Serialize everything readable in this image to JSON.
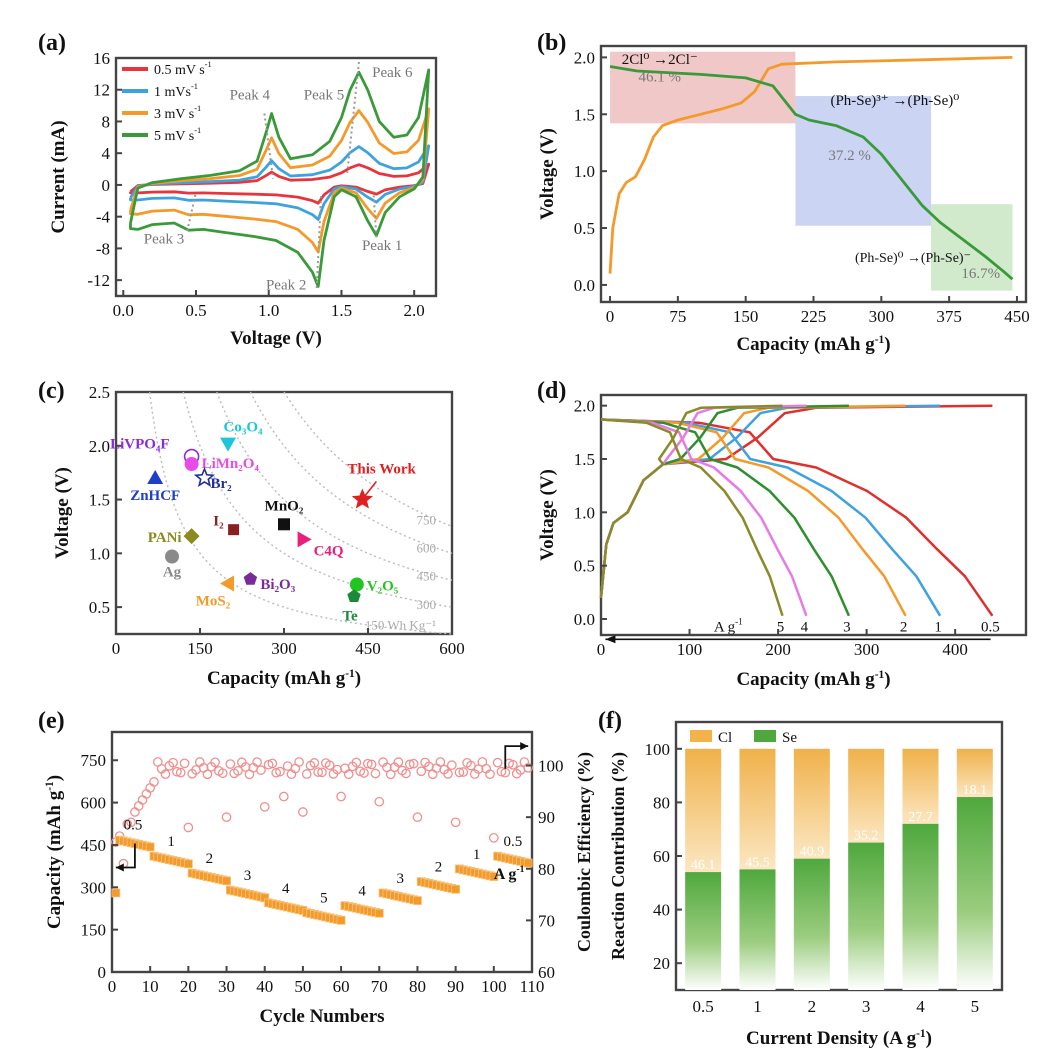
{
  "chart_data": [
    {
      "panel": "(a)",
      "type": "line",
      "xlabel": "Voltage (V)",
      "ylabel": "Current (mA)",
      "xlim": [
        -0.05,
        2.15
      ],
      "ylim": [
        -14,
        16
      ],
      "xticks": [
        0.0,
        0.5,
        1.0,
        1.5,
        2.0
      ],
      "xtick_labels": [
        "0.0",
        "0.5",
        "1.0",
        "1.5",
        "2.0"
      ],
      "yticks": [
        -12,
        -8,
        -4,
        0,
        4,
        8,
        12,
        16
      ],
      "ytick_labels": [
        "-12",
        "-8",
        "-4",
        "0",
        "4",
        "8",
        "12",
        "16"
      ],
      "legend": {
        "placement": "top-left",
        "entries": [
          {
            "label": "0.5 mV s",
            "sup": "-1",
            "color": "#e8343c"
          },
          {
            "label": "1 mVs",
            "sup": "-1",
            "color": "#3ea2df"
          },
          {
            "label": "3 mV s",
            "sup": "-1",
            "color": "#f39a2b"
          },
          {
            "label": "5 mV s",
            "sup": "-1",
            "color": "#3a9a3a"
          }
        ]
      },
      "series": [
        {
          "name": "0.5 mV s-1",
          "color": "#e8343c",
          "scale": 0.18
        },
        {
          "name": "1 mVs-1",
          "color": "#3ea2df",
          "scale": 0.34
        },
        {
          "name": "3 mV s-1",
          "color": "#f39a2b",
          "scale": 0.66
        },
        {
          "name": "5 mV s-1",
          "color": "#3a9a3a",
          "scale": 1.0
        }
      ],
      "base_anodic": [
        [
          0.05,
          -4.8
        ],
        [
          0.1,
          -0.4
        ],
        [
          0.2,
          0.3
        ],
        [
          0.4,
          0.8
        ],
        [
          0.6,
          1.2
        ],
        [
          0.8,
          1.8
        ],
        [
          0.92,
          3.0
        ],
        [
          0.98,
          6.5
        ],
        [
          1.02,
          9.0
        ],
        [
          1.07,
          6.0
        ],
        [
          1.15,
          3.3
        ],
        [
          1.3,
          3.8
        ],
        [
          1.42,
          5.5
        ],
        [
          1.5,
          8.5
        ],
        [
          1.56,
          12.0
        ],
        [
          1.62,
          14.2
        ],
        [
          1.68,
          12.0
        ],
        [
          1.76,
          8.0
        ],
        [
          1.86,
          6.0
        ],
        [
          1.95,
          6.3
        ],
        [
          2.03,
          8.5
        ],
        [
          2.1,
          14.5
        ]
      ],
      "base_cathodic": [
        [
          2.1,
          14.5
        ],
        [
          2.06,
          1.0
        ],
        [
          2.0,
          -0.5
        ],
        [
          1.9,
          -1.5
        ],
        [
          1.8,
          -3.5
        ],
        [
          1.74,
          -6.4
        ],
        [
          1.68,
          -4.5
        ],
        [
          1.6,
          -1.5
        ],
        [
          1.5,
          -0.6
        ],
        [
          1.45,
          -1.5
        ],
        [
          1.38,
          -7.0
        ],
        [
          1.34,
          -12.8
        ],
        [
          1.3,
          -11.0
        ],
        [
          1.2,
          -8.5
        ],
        [
          1.05,
          -7.0
        ],
        [
          0.9,
          -6.5
        ],
        [
          0.7,
          -6.0
        ],
        [
          0.55,
          -5.6
        ],
        [
          0.45,
          -5.7
        ],
        [
          0.35,
          -4.8
        ],
        [
          0.2,
          -5.0
        ],
        [
          0.1,
          -5.6
        ],
        [
          0.05,
          -5.5
        ],
        [
          0.05,
          -4.8
        ]
      ],
      "peak_markers": [
        {
          "label": "Peak 1",
          "v": 1.74,
          "i": -6.4
        },
        {
          "label": "Peak 2",
          "v": 1.34,
          "i": -12.8
        },
        {
          "label": "Peak 3",
          "v": 0.45,
          "i": -5.7
        },
        {
          "label": "Peak 4",
          "v": 1.02,
          "i": 9.0
        },
        {
          "label": "Peak 5",
          "v": 1.52,
          "i": 8.5
        },
        {
          "label": "Peak 6",
          "v": 1.62,
          "i": 14.2
        }
      ]
    },
    {
      "panel": "(b)",
      "type": "line",
      "xlabel": "Capacity (mAh g",
      "xlabel_sup": "-1",
      "ylabel": "Voltage (V)",
      "xlim": [
        -10,
        460
      ],
      "ylim": [
        -0.15,
        2.1
      ],
      "xticks": [
        0,
        75,
        150,
        225,
        300,
        375,
        450
      ],
      "xtick_labels": [
        "0",
        "75",
        "150",
        "225",
        "300",
        "375",
        "450"
      ],
      "yticks": [
        0.0,
        0.5,
        1.0,
        1.5,
        2.0
      ],
      "ytick_labels": [
        "0.0",
        "0.5",
        "1.0",
        "1.5",
        "2.0"
      ],
      "charge": {
        "color": "#f39a2b",
        "points": [
          [
            0,
            0.1
          ],
          [
            3,
            0.5
          ],
          [
            10,
            0.8
          ],
          [
            18,
            0.9
          ],
          [
            28,
            0.95
          ],
          [
            38,
            1.1
          ],
          [
            48,
            1.3
          ],
          [
            58,
            1.4
          ],
          [
            75,
            1.45
          ],
          [
            100,
            1.5
          ],
          [
            125,
            1.55
          ],
          [
            145,
            1.6
          ],
          [
            160,
            1.7
          ],
          [
            175,
            1.9
          ],
          [
            190,
            1.94
          ],
          [
            250,
            1.96
          ],
          [
            350,
            1.98
          ],
          [
            445,
            2.0
          ]
        ]
      },
      "discharge": {
        "color": "#3a9a3a",
        "points": [
          [
            0,
            1.92
          ],
          [
            30,
            1.88
          ],
          [
            100,
            1.85
          ],
          [
            150,
            1.82
          ],
          [
            180,
            1.75
          ],
          [
            195,
            1.6
          ],
          [
            205,
            1.5
          ],
          [
            220,
            1.45
          ],
          [
            250,
            1.4
          ],
          [
            280,
            1.3
          ],
          [
            300,
            1.15
          ],
          [
            320,
            0.95
          ],
          [
            345,
            0.7
          ],
          [
            365,
            0.55
          ],
          [
            390,
            0.4
          ],
          [
            415,
            0.25
          ],
          [
            435,
            0.12
          ],
          [
            445,
            0.05
          ]
        ]
      },
      "regions": [
        {
          "x0": 0,
          "x1": 205,
          "y0": 1.42,
          "y1": 2.05,
          "color": "#e08585",
          "percent": "46.1 %",
          "reaction": "2Cl⁰ →2Cl⁻"
        },
        {
          "x0": 205,
          "x1": 355,
          "y0": 0.52,
          "y1": 1.66,
          "color": "#8ea0e6",
          "percent": "37.2 %",
          "reaction": "(Ph-Se)³⁺ →(Ph-Se)⁰"
        },
        {
          "x0": 355,
          "x1": 445,
          "y0": -0.05,
          "y1": 0.71,
          "color": "#9bd08f",
          "percent": "16.7%",
          "reaction": "(Ph-Se)⁰ →(Ph-Se)⁻"
        }
      ]
    },
    {
      "panel": "(c)",
      "type": "scatter",
      "xlabel": "Capacity (mAh g",
      "xlabel_sup": "-1",
      "ylabel": "Voltage (V)",
      "xlim": [
        0,
        600
      ],
      "ylim": [
        0.25,
        2.5
      ],
      "xticks": [
        0,
        150,
        300,
        450,
        600
      ],
      "xtick_labels": [
        "0",
        "150",
        "300",
        "450",
        "600"
      ],
      "yticks": [
        0.5,
        1.0,
        1.5,
        2.0,
        2.5
      ],
      "ytick_labels": [
        "0.5",
        "1.0",
        "1.5",
        "2.0",
        "2.5"
      ],
      "energy_lines": [
        150,
        300,
        450,
        600,
        750
      ],
      "energy_labels": [
        "150 Wh Kg⁻¹",
        "300",
        "450",
        "600",
        "750"
      ],
      "points": [
        {
          "name": "LiVPO₄F",
          "x": 135,
          "y": 1.9,
          "color": "#8a2be2",
          "marker": "half-circle"
        },
        {
          "name": "Co₃O₄",
          "x": 200,
          "y": 2.02,
          "color": "#19c7d6",
          "marker": "tri-down"
        },
        {
          "name": "LiMn₂O₄",
          "x": 135,
          "y": 1.83,
          "color": "#e84be8",
          "marker": "circle"
        },
        {
          "name": "This Work",
          "x": 440,
          "y": 1.5,
          "color": "#e02020",
          "marker": "star"
        },
        {
          "name": "ZnHCF",
          "x": 70,
          "y": 1.7,
          "color": "#1f3fc8",
          "marker": "tri-up"
        },
        {
          "name": "Br₂",
          "x": 158,
          "y": 1.7,
          "color": "#1f2f9e",
          "marker": "star-open"
        },
        {
          "name": "MnO₂",
          "x": 300,
          "y": 1.27,
          "color": "#111111",
          "marker": "square"
        },
        {
          "name": "I₂",
          "x": 210,
          "y": 1.22,
          "color": "#8a1f1f",
          "marker": "square-half"
        },
        {
          "name": "PANi",
          "x": 135,
          "y": 1.16,
          "color": "#8a8a1f",
          "marker": "diamond"
        },
        {
          "name": "C4Q",
          "x": 335,
          "y": 1.13,
          "color": "#e8207a",
          "marker": "tri-right"
        },
        {
          "name": "Ag",
          "x": 100,
          "y": 0.97,
          "color": "#8a8a8a",
          "marker": "circle"
        },
        {
          "name": "Bi₂O₃",
          "x": 240,
          "y": 0.76,
          "color": "#7a2a9a",
          "marker": "pentagon"
        },
        {
          "name": "V₂O₅",
          "x": 430,
          "y": 0.71,
          "color": "#22c422",
          "marker": "circle"
        },
        {
          "name": "MoS₂",
          "x": 200,
          "y": 0.72,
          "color": "#f39a2b",
          "marker": "tri-left"
        },
        {
          "name": "Te",
          "x": 425,
          "y": 0.6,
          "color": "#1a8a3a",
          "marker": "pentagon"
        }
      ]
    },
    {
      "panel": "(d)",
      "type": "line",
      "xlabel": "Capacity (mAh g",
      "xlabel_sup": "-1",
      "ylabel": "Voltage (V)",
      "xlim": [
        0,
        480
      ],
      "ylim": [
        -0.15,
        2.1
      ],
      "xticks": [
        0,
        100,
        200,
        300,
        400
      ],
      "xtick_labels": [
        "0",
        "100",
        "200",
        "300",
        "400"
      ],
      "yticks": [
        0.0,
        0.5,
        1.0,
        1.5,
        2.0
      ],
      "ytick_labels": [
        "0.0",
        "0.5",
        "1.0",
        "1.5",
        "2.0"
      ],
      "rate_label": "A g",
      "rate_label_sup": "-1",
      "series": [
        {
          "rate": "0.5",
          "capacity": 442,
          "color": "#e0302c"
        },
        {
          "rate": "1",
          "capacity": 383,
          "color": "#3ea2df"
        },
        {
          "rate": "2",
          "capacity": 344,
          "color": "#f39a2b"
        },
        {
          "rate": "3",
          "capacity": 280,
          "color": "#2f8f2f"
        },
        {
          "rate": "4",
          "capacity": 232,
          "color": "#e87ae8"
        },
        {
          "rate": "5",
          "capacity": 205,
          "color": "#8a8a2a"
        }
      ]
    },
    {
      "panel": "(e)",
      "type": "scatter",
      "xlabel": "Cycle Numbers",
      "ylabel": "Capacity (mAh g",
      "ylabel_sup": "-1",
      "y2label": "Coulombic Efficiency (%)",
      "xlim": [
        0,
        110
      ],
      "ylim": [
        0,
        850
      ],
      "y2lim": [
        60,
        106.5
      ],
      "xticks": [
        0,
        10,
        20,
        30,
        40,
        50,
        60,
        70,
        80,
        90,
        100,
        110
      ],
      "xtick_labels": [
        "0",
        "10",
        "20",
        "30",
        "40",
        "50",
        "60",
        "70",
        "80",
        "90",
        "100",
        "110"
      ],
      "yticks": [
        0,
        150,
        300,
        450,
        600,
        750
      ],
      "ytick_labels": [
        "0",
        "150",
        "300",
        "450",
        "600",
        "750"
      ],
      "y2ticks": [
        60,
        70,
        80,
        90,
        100
      ],
      "y2tick_labels": [
        "60",
        "70",
        "80",
        "90",
        "100"
      ],
      "rate_steps": [
        {
          "rate": "0.5",
          "from": 1,
          "to": 10,
          "cap": 470
        },
        {
          "rate": "1",
          "from": 11,
          "to": 20,
          "cap": 410
        },
        {
          "rate": "2",
          "from": 21,
          "to": 30,
          "cap": 350
        },
        {
          "rate": "3",
          "from": 31,
          "to": 40,
          "cap": 290
        },
        {
          "rate": "4",
          "from": 41,
          "to": 50,
          "cap": 245
        },
        {
          "rate": "5",
          "from": 51,
          "to": 60,
          "cap": 210
        },
        {
          "rate": "4",
          "from": 61,
          "to": 70,
          "cap": 235
        },
        {
          "rate": "3",
          "from": 71,
          "to": 80,
          "cap": 280
        },
        {
          "rate": "2",
          "from": 81,
          "to": 90,
          "cap": 320
        },
        {
          "rate": "1",
          "from": 91,
          "to": 100,
          "cap": 365
        },
        {
          "rate": "0.5",
          "from": 101,
          "to": 109,
          "cap": 410
        }
      ],
      "rate_unit": "A g",
      "rate_unit_sup": "-1",
      "ce_outliers": [
        [
          3,
          81
        ],
        [
          5,
          89
        ],
        [
          20,
          88
        ],
        [
          30,
          90
        ],
        [
          40,
          92
        ],
        [
          45,
          94
        ],
        [
          50,
          91
        ],
        [
          60,
          94
        ],
        [
          70,
          93
        ],
        [
          80,
          90
        ],
        [
          90,
          89
        ],
        [
          100,
          86
        ]
      ]
    },
    {
      "panel": "(f)",
      "type": "bar",
      "xlabel": "Current Density (A g",
      "xlabel_sup": "-1",
      "ylabel": "Reaction Contribution (%)",
      "categories": [
        "0.5",
        "1",
        "2",
        "3",
        "4",
        "5"
      ],
      "ylim": [
        10,
        110
      ],
      "yticks": [
        20,
        40,
        60,
        80,
        100
      ],
      "ytick_labels": [
        "20",
        "40",
        "60",
        "80",
        "100"
      ],
      "legend": {
        "placement": "top-left",
        "entries": [
          {
            "label": "Cl",
            "color": "#f3b24a"
          },
          {
            "label": "Se",
            "color": "#4fa83d"
          }
        ]
      },
      "se_values": [
        54,
        55,
        59,
        65,
        72,
        82
      ],
      "cl_labels": [
        "46.1",
        "45.5",
        "40.9",
        "35.2",
        "27.7",
        "18.1"
      ],
      "total": 100
    }
  ]
}
